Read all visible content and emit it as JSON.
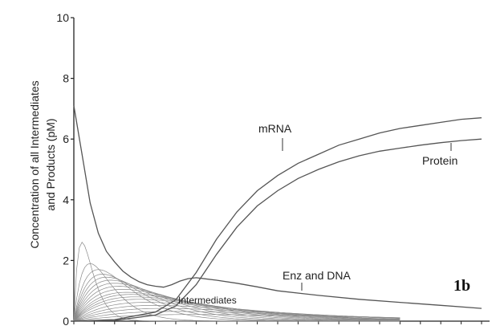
{
  "chart_data": {
    "type": "line",
    "title": "",
    "panel_label": "1b",
    "ylabel": [
      "Concentration of all Intermediates",
      "and Products (pM)"
    ],
    "xlabel": "",
    "xlim": [
      0,
      100
    ],
    "ylim": [
      0,
      10
    ],
    "y_ticks": [
      "0",
      "2",
      "4",
      "6",
      "8",
      "10"
    ],
    "grid": false,
    "annotations": [
      "mRNA",
      "Protein",
      "Enz and DNA",
      "Intermediates"
    ],
    "series": [
      {
        "name": "mRNA",
        "x": [
          0,
          10,
          20,
          25,
          30,
          35,
          40,
          45,
          50,
          55,
          60,
          65,
          70,
          75,
          80,
          85,
          90,
          95,
          100
        ],
        "y": [
          0,
          0.05,
          0.3,
          0.7,
          1.6,
          2.7,
          3.6,
          4.3,
          4.8,
          5.2,
          5.5,
          5.8,
          6.0,
          6.2,
          6.35,
          6.45,
          6.55,
          6.65,
          6.7
        ]
      },
      {
        "name": "Protein",
        "x": [
          0,
          10,
          20,
          25,
          30,
          35,
          40,
          45,
          50,
          55,
          60,
          65,
          70,
          75,
          80,
          85,
          90,
          95,
          100
        ],
        "y": [
          0,
          0.02,
          0.2,
          0.5,
          1.2,
          2.2,
          3.1,
          3.8,
          4.3,
          4.7,
          5.0,
          5.25,
          5.45,
          5.6,
          5.7,
          5.8,
          5.88,
          5.95,
          6.0
        ]
      },
      {
        "name": "Enz and DNA",
        "x": [
          0,
          2,
          4,
          6,
          8,
          10,
          12,
          14,
          16,
          18,
          20,
          22,
          24,
          26,
          28,
          30,
          35,
          40,
          45,
          50,
          60,
          70,
          80,
          90,
          100
        ],
        "y": [
          7.1,
          5.5,
          3.9,
          2.9,
          2.3,
          1.95,
          1.65,
          1.45,
          1.3,
          1.2,
          1.15,
          1.12,
          1.2,
          1.32,
          1.4,
          1.43,
          1.35,
          1.25,
          1.13,
          1.0,
          0.85,
          0.72,
          0.62,
          0.52,
          0.42
        ]
      }
    ],
    "intermediates": [
      {
        "peak_x": 2,
        "peak_y": 2.6
      },
      {
        "peak_x": 4,
        "peak_y": 1.9
      },
      {
        "peak_x": 6,
        "peak_y": 1.7
      },
      {
        "peak_x": 7,
        "peak_y": 1.55
      },
      {
        "peak_x": 8,
        "peak_y": 1.45
      },
      {
        "peak_x": 9,
        "peak_y": 1.35
      },
      {
        "peak_x": 10,
        "peak_y": 1.25
      },
      {
        "peak_x": 11,
        "peak_y": 1.15
      },
      {
        "peak_x": 12,
        "peak_y": 1.05
      },
      {
        "peak_x": 13,
        "peak_y": 0.95
      },
      {
        "peak_x": 14,
        "peak_y": 0.88
      },
      {
        "peak_x": 15,
        "peak_y": 0.8
      },
      {
        "peak_x": 16,
        "peak_y": 0.72
      },
      {
        "peak_x": 18,
        "peak_y": 0.62
      },
      {
        "peak_x": 20,
        "peak_y": 0.52
      },
      {
        "peak_x": 22,
        "peak_y": 0.42
      },
      {
        "peak_x": 25,
        "peak_y": 0.32
      },
      {
        "peak_x": 30,
        "peak_y": 0.22
      }
    ],
    "colors": {
      "lines": "#555555",
      "intermediates": "#8a8a8a",
      "axis": "#222222"
    }
  }
}
